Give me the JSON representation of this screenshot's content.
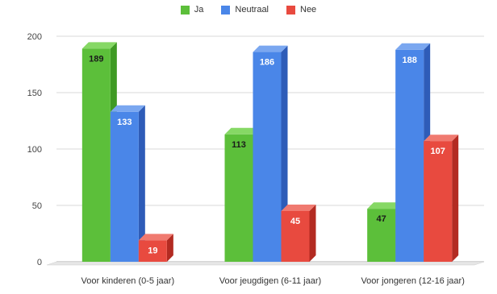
{
  "chart_data": {
    "type": "bar",
    "title": "",
    "xlabel": "",
    "ylabel": "",
    "ylim": [
      0,
      200
    ],
    "yticks": [
      0,
      50,
      100,
      150,
      200
    ],
    "grid": true,
    "legend_position": "top",
    "style": "3d-columns",
    "categories": [
      "Voor kinderen (0-5 jaar)",
      "Voor jeugdigen (6-11 jaar)",
      "Voor jongeren (12-16 jaar)"
    ],
    "series": [
      {
        "name": "Ja",
        "values": [
          189,
          113,
          47
        ],
        "color": "#5cbf3a",
        "side": "#3f9a24",
        "top": "#86d865"
      },
      {
        "name": "Neutraal",
        "values": [
          133,
          186,
          188
        ],
        "color": "#4a86e8",
        "side": "#2e5cb8",
        "top": "#7aa7f0"
      },
      {
        "name": "Nee",
        "values": [
          19,
          45,
          107
        ],
        "color": "#e84a3f",
        "side": "#b32b22",
        "top": "#f07a70"
      }
    ]
  }
}
